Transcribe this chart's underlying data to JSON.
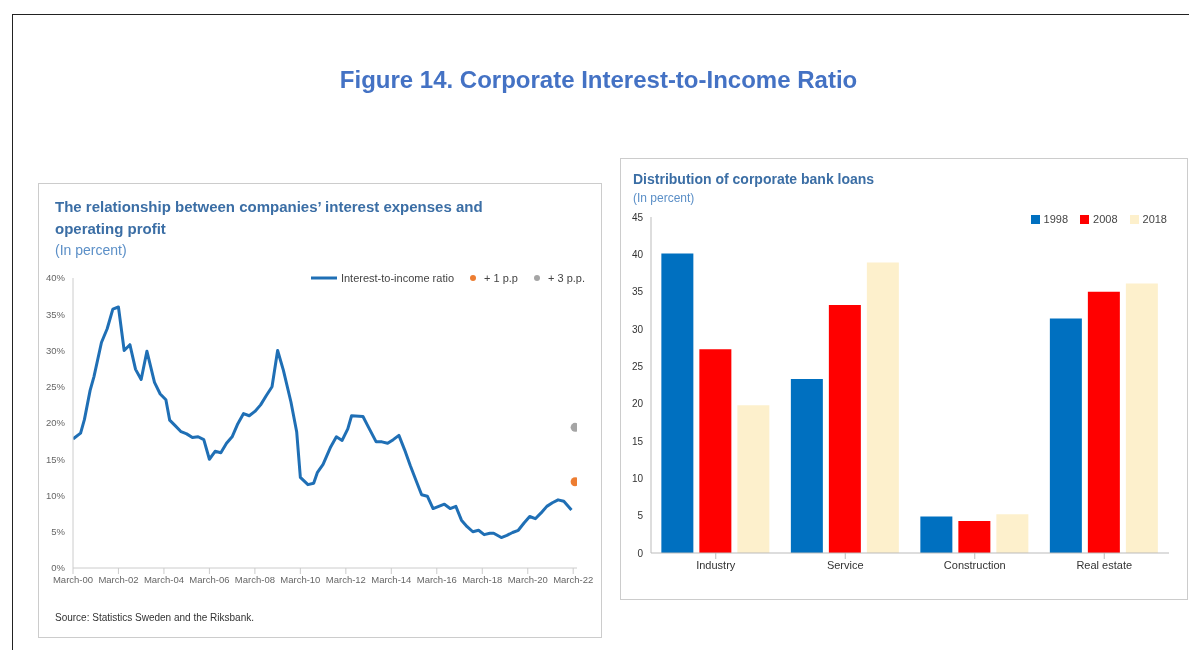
{
  "chart_data": [
    {
      "type": "line",
      "title": "The relationship between companies’ interest expenses and operating profit",
      "subtitle": "(In percent)",
      "annotations": [
        "Figure 14. Corporate Interest-to-Income Ratio",
        "Source: Statistics Sweden and the Riksbank."
      ],
      "xlim": [
        "2000-03",
        "2022-05"
      ],
      "xticks": [
        {
          "value": "2000-03",
          "label": "March-00"
        },
        {
          "value": "2002-03",
          "label": "March-02"
        },
        {
          "value": "2004-03",
          "label": "March-04"
        },
        {
          "value": "2006-03",
          "label": "March-06"
        },
        {
          "value": "2008-03",
          "label": "March-08"
        },
        {
          "value": "2010-03",
          "label": "March-10"
        },
        {
          "value": "2012-03",
          "label": "March-12"
        },
        {
          "value": "2014-03",
          "label": "March-14"
        },
        {
          "value": "2016-03",
          "label": "March-16"
        },
        {
          "value": "2018-03",
          "label": "March-18"
        },
        {
          "value": "2020-03",
          "label": "March-20"
        },
        {
          "value": "2022-03",
          "label": "March-22"
        }
      ],
      "ylim": [
        0,
        40
      ],
      "yticks": [
        {
          "value": 0,
          "label": "0%"
        },
        {
          "value": 5,
          "label": "5%"
        },
        {
          "value": 10,
          "label": "10%"
        },
        {
          "value": 15,
          "label": "15%"
        },
        {
          "value": 20,
          "label": "20%"
        },
        {
          "value": 25,
          "label": "25%"
        },
        {
          "value": 30,
          "label": "30%"
        },
        {
          "value": 35,
          "label": "35%"
        },
        {
          "value": 40,
          "label": "40%"
        }
      ],
      "grid": false,
      "legend": "top right",
      "series": [
        {
          "name": "Interest-to-income ratio",
          "type": "line",
          "color": "#1f6fb5",
          "marker": "none",
          "line_style": "solid",
          "x": [
            "2000-03",
            "2000-07",
            "2000-09",
            "2000-12",
            "2001-02",
            "2001-06",
            "2001-09",
            "2001-12",
            "2002-03",
            "2002-06",
            "2002-09",
            "2002-12",
            "2003-03",
            "2003-06",
            "2003-10",
            "2004-01",
            "2004-04",
            "2004-06",
            "2004-09",
            "2004-12",
            "2005-03",
            "2005-06",
            "2005-09",
            "2005-12",
            "2006-03",
            "2006-06",
            "2006-09",
            "2006-12",
            "2007-03",
            "2007-06",
            "2007-09",
            "2007-12",
            "2008-03",
            "2008-06",
            "2008-09",
            "2008-12",
            "2009-03",
            "2009-06",
            "2009-10",
            "2010-01",
            "2010-03",
            "2010-07",
            "2010-10",
            "2010-12",
            "2011-03",
            "2011-07",
            "2011-10",
            "2012-01",
            "2012-04",
            "2012-06",
            "2012-12",
            "2013-03",
            "2013-07",
            "2013-10",
            "2014-01",
            "2014-04",
            "2014-07",
            "2014-10",
            "2015-01",
            "2015-04",
            "2015-07",
            "2015-10",
            "2016-01",
            "2016-04",
            "2016-07",
            "2016-10",
            "2017-01",
            "2017-04",
            "2017-07",
            "2017-10",
            "2018-01",
            "2018-04",
            "2018-07",
            "2018-09",
            "2019-01",
            "2019-04",
            "2019-07",
            "2019-10",
            "2020-01",
            "2020-04",
            "2020-07",
            "2020-10",
            "2021-01",
            "2021-04",
            "2021-07",
            "2021-10",
            "2022-02"
          ],
          "values": [
            17.8,
            18.6,
            20.5,
            24.5,
            26.4,
            31.1,
            33.0,
            35.7,
            36.0,
            30.0,
            30.8,
            27.4,
            26.0,
            29.9,
            25.6,
            24.0,
            23.2,
            20.4,
            19.6,
            18.8,
            18.5,
            18.0,
            18.1,
            17.7,
            15.0,
            16.1,
            15.9,
            17.2,
            18.1,
            19.9,
            21.3,
            21.0,
            21.6,
            22.5,
            23.8,
            25.0,
            30.0,
            27.3,
            22.9,
            18.8,
            12.5,
            11.5,
            11.7,
            13.2,
            14.3,
            16.7,
            18.1,
            17.6,
            19.2,
            21.0,
            20.9,
            19.4,
            17.4,
            17.4,
            17.2,
            17.7,
            18.3,
            16.3,
            14.1,
            12.1,
            10.1,
            9.9,
            8.2,
            8.5,
            8.8,
            8.2,
            8.5,
            6.6,
            5.7,
            5.0,
            5.2,
            4.6,
            4.8,
            4.8,
            4.2,
            4.5,
            4.9,
            5.2,
            6.2,
            7.1,
            6.8,
            7.6,
            8.5,
            9.0,
            9.4,
            9.2,
            8.0
          ]
        },
        {
          "name": "+ 1 p.p",
          "type": "scatter",
          "color": "#ed7d31",
          "marker": "circle",
          "x": [
            "2022-04"
          ],
          "values": [
            11.9
          ]
        },
        {
          "name": "+ 3 p.p.",
          "type": "scatter",
          "color": "#a5a5a5",
          "marker": "circle",
          "x": [
            "2022-04"
          ],
          "values": [
            19.4
          ]
        }
      ]
    },
    {
      "type": "bar",
      "title": "Distribution of corporate bank loans",
      "subtitle": "(In percent)",
      "categories": [
        "Industry",
        "Service",
        "Construction",
        "Real estate"
      ],
      "ylim": [
        0,
        45
      ],
      "yticks": [
        0,
        5,
        10,
        15,
        20,
        25,
        30,
        35,
        40,
        45
      ],
      "grid": false,
      "legend": "top right",
      "series": [
        {
          "name": "1998",
          "color": "#0070c0",
          "values": [
            40.1,
            23.3,
            4.9,
            31.4
          ]
        },
        {
          "name": "2008",
          "color": "#ff0000",
          "values": [
            27.3,
            33.2,
            4.3,
            35.0
          ]
        },
        {
          "name": "2018",
          "color": "#fdf0cc",
          "values": [
            19.8,
            38.9,
            5.2,
            36.1
          ]
        }
      ]
    }
  ]
}
